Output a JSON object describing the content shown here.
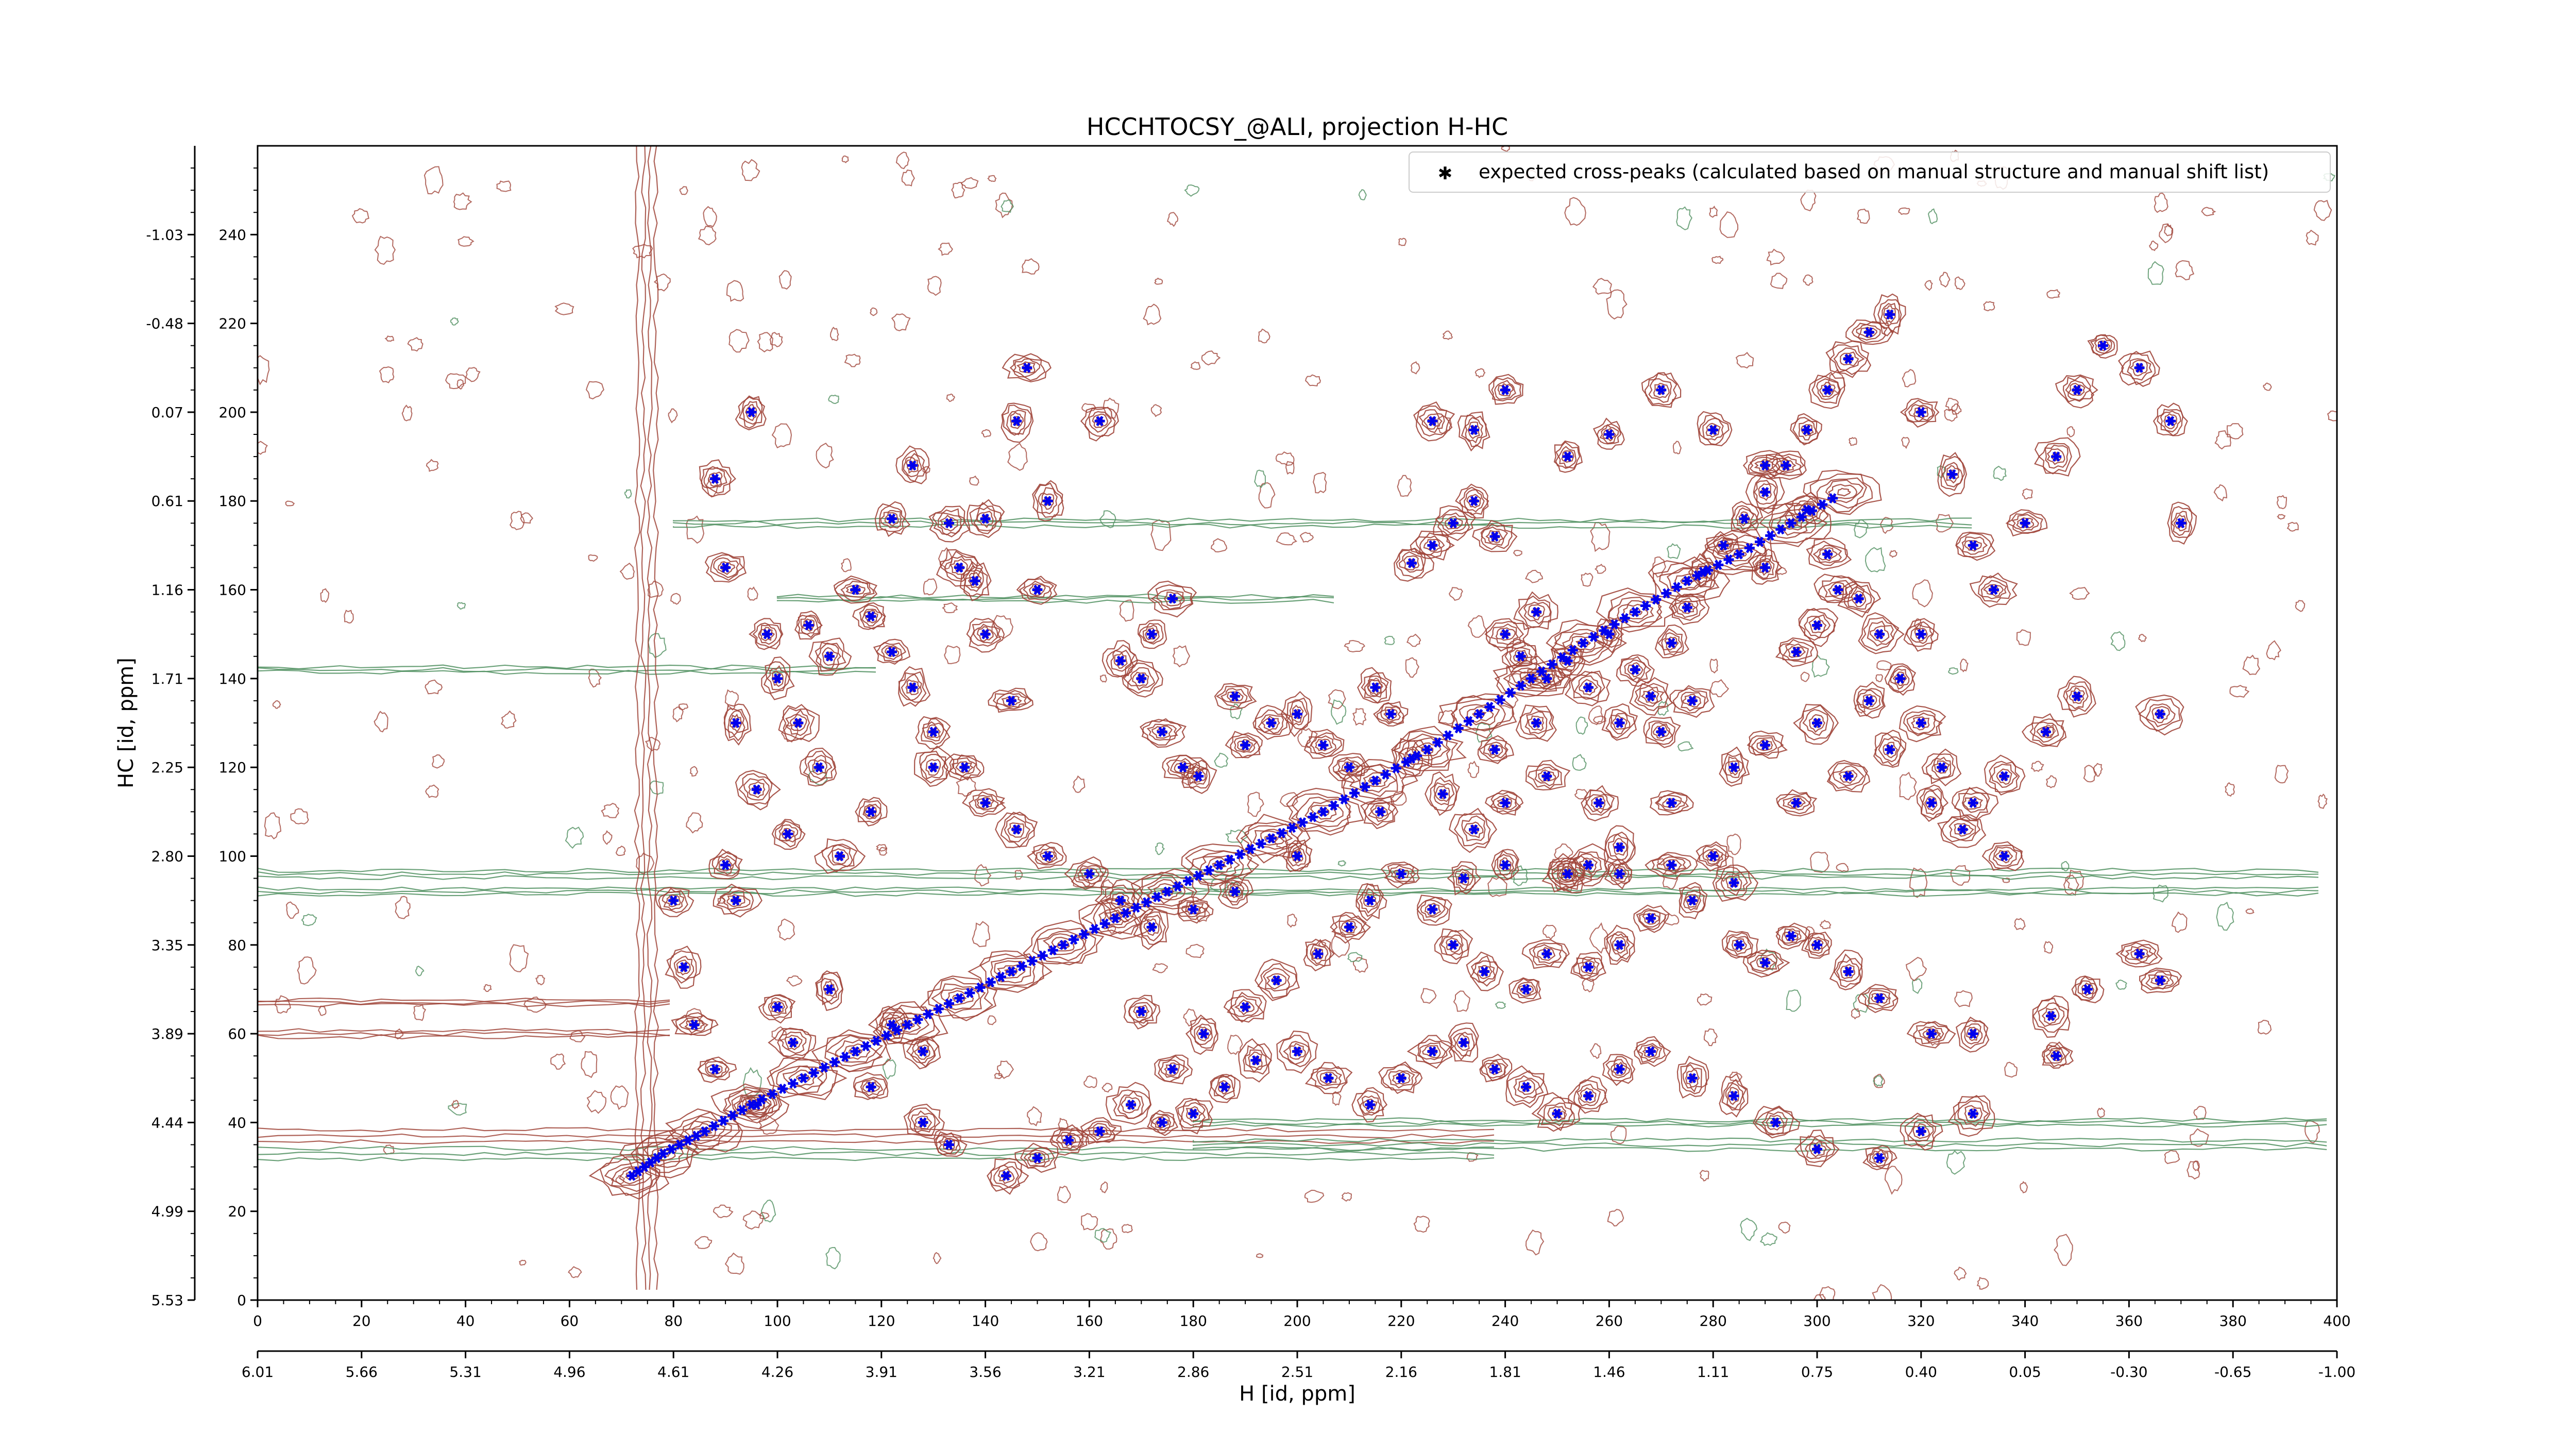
{
  "chart_data": {
    "type": "heatmap",
    "title": "HCCHTOCSY_@ALI, projection H-HC",
    "xlabel": "H [id, ppm]",
    "ylabel": "HC [id, ppm]",
    "x_index_range": [
      0,
      400
    ],
    "y_index_range": [
      0,
      260
    ],
    "x_index_ticks": [
      "0",
      "20",
      "40",
      "60",
      "80",
      "100",
      "120",
      "140",
      "160",
      "180",
      "200",
      "220",
      "240",
      "260",
      "280",
      "300",
      "320",
      "340",
      "360",
      "380",
      "400"
    ],
    "x_ppm_ticks": [
      "6.01",
      "5.66",
      "5.31",
      "4.96",
      "4.61",
      "4.26",
      "3.91",
      "3.56",
      "3.21",
      "2.86",
      "2.51",
      "2.16",
      "1.81",
      "1.46",
      "1.11",
      "0.75",
      "0.40",
      "0.05",
      "-0.30",
      "-0.65",
      "-1.00"
    ],
    "y_index_ticks": [
      "0",
      "20",
      "40",
      "60",
      "80",
      "100",
      "120",
      "140",
      "160",
      "180",
      "200",
      "220",
      "240"
    ],
    "y_ppm_ticks": [
      "5.53",
      "4.99",
      "4.44",
      "3.89",
      "3.35",
      "2.80",
      "2.25",
      "1.71",
      "1.16",
      "0.61",
      "0.07",
      "-0.48",
      "-1.03"
    ],
    "grid": false,
    "legend_position": "top-right",
    "legend_entry": "expected cross-peaks (calculated based on manual structure and manual shift list)",
    "colors": {
      "positive_contour": "#a0453a",
      "negative_contour": "#4f8f5f",
      "marker": "#0000ee"
    },
    "series": [
      {
        "name": "expected cross-peaks (calculated based on manual structure and manual shift list)",
        "diagonal": [
          [
            72,
            28
          ],
          [
            78,
            33
          ],
          [
            86,
            38
          ],
          [
            95,
            44
          ],
          [
            105,
            50
          ],
          [
            115,
            56
          ],
          [
            125,
            62
          ],
          [
            135,
            68
          ],
          [
            145,
            74
          ],
          [
            155,
            80
          ],
          [
            165,
            86
          ],
          [
            175,
            92
          ],
          [
            185,
            98
          ],
          [
            195,
            104
          ],
          [
            205,
            110
          ],
          [
            215,
            117
          ],
          [
            225,
            124
          ],
          [
            235,
            132
          ],
          [
            245,
            140
          ],
          [
            255,
            148
          ],
          [
            265,
            155
          ],
          [
            275,
            162
          ],
          [
            285,
            168
          ],
          [
            295,
            175
          ],
          [
            305,
            182
          ]
        ],
        "cross_peaks": [
          [
            88,
            185
          ],
          [
            90,
            165
          ],
          [
            95,
            200
          ],
          [
            98,
            150
          ],
          [
            100,
            140
          ],
          [
            104,
            130
          ],
          [
            108,
            120
          ],
          [
            110,
            145
          ],
          [
            112,
            100
          ],
          [
            115,
            160
          ],
          [
            118,
            110
          ],
          [
            92,
            130
          ],
          [
            96,
            115
          ],
          [
            102,
            105
          ],
          [
            106,
            152
          ],
          [
            90,
            98
          ],
          [
            92,
            90
          ],
          [
            80,
            90
          ],
          [
            82,
            75
          ],
          [
            84,
            62
          ],
          [
            88,
            52
          ],
          [
            96,
            44
          ],
          [
            100,
            66
          ],
          [
            103,
            58
          ],
          [
            110,
            70
          ],
          [
            118,
            48
          ],
          [
            122,
            62
          ],
          [
            128,
            56
          ],
          [
            128,
            40
          ],
          [
            133,
            35
          ],
          [
            135,
            165
          ],
          [
            140,
            150
          ],
          [
            145,
            135
          ],
          [
            150,
            160
          ],
          [
            148,
            210
          ],
          [
            146,
            198
          ],
          [
            162,
            198
          ],
          [
            152,
            180
          ],
          [
            133,
            175
          ],
          [
            138,
            162
          ],
          [
            166,
            144
          ],
          [
            170,
            140
          ],
          [
            172,
            150
          ],
          [
            174,
            128
          ],
          [
            176,
            158
          ],
          [
            178,
            120
          ],
          [
            181,
            118
          ],
          [
            188,
            136
          ],
          [
            190,
            125
          ],
          [
            195,
            130
          ],
          [
            200,
            132
          ],
          [
            205,
            125
          ],
          [
            210,
            120
          ],
          [
            215,
            138
          ],
          [
            218,
            132
          ],
          [
            222,
            166
          ],
          [
            226,
            170
          ],
          [
            230,
            175
          ],
          [
            234,
            180
          ],
          [
            238,
            172
          ],
          [
            240,
            150
          ],
          [
            243,
            145
          ],
          [
            246,
            155
          ],
          [
            248,
            140
          ],
          [
            252,
            144
          ],
          [
            256,
            138
          ],
          [
            260,
            150
          ],
          [
            262,
            130
          ],
          [
            265,
            142
          ],
          [
            268,
            136
          ],
          [
            272,
            148
          ],
          [
            275,
            156
          ],
          [
            278,
            164
          ],
          [
            282,
            170
          ],
          [
            286,
            176
          ],
          [
            290,
            182
          ],
          [
            294,
            188
          ],
          [
            298,
            196
          ],
          [
            302,
            205
          ],
          [
            306,
            212
          ],
          [
            310,
            218
          ],
          [
            314,
            222
          ],
          [
            320,
            200
          ],
          [
            326,
            186
          ],
          [
            330,
            170
          ],
          [
            334,
            160
          ],
          [
            340,
            175
          ],
          [
            346,
            190
          ],
          [
            350,
            205
          ],
          [
            355,
            215
          ],
          [
            362,
            210
          ],
          [
            368,
            198
          ],
          [
            370,
            175
          ],
          [
            366,
            132
          ],
          [
            226,
            198
          ],
          [
            234,
            196
          ],
          [
            240,
            205
          ],
          [
            252,
            190
          ],
          [
            260,
            195
          ],
          [
            270,
            205
          ],
          [
            280,
            196
          ],
          [
            290,
            188
          ],
          [
            298,
            178
          ],
          [
            302,
            168
          ],
          [
            308,
            158
          ],
          [
            312,
            150
          ],
          [
            316,
            140
          ],
          [
            320,
            130
          ],
          [
            324,
            120
          ],
          [
            330,
            112
          ],
          [
            336,
            118
          ],
          [
            344,
            128
          ],
          [
            350,
            136
          ],
          [
            320,
            150
          ],
          [
            310,
            135
          ],
          [
            300,
            130
          ],
          [
            290,
            125
          ],
          [
            284,
            120
          ],
          [
            272,
            112
          ],
          [
            262,
            102
          ],
          [
            252,
            96
          ],
          [
            240,
            98
          ],
          [
            232,
            95
          ],
          [
            226,
            88
          ],
          [
            230,
            80
          ],
          [
            236,
            74
          ],
          [
            244,
            70
          ],
          [
            252,
            96
          ],
          [
            256,
            98
          ],
          [
            262,
            96
          ],
          [
            272,
            98
          ],
          [
            285,
            80
          ],
          [
            290,
            76
          ],
          [
            295,
            82
          ],
          [
            300,
            80
          ],
          [
            306,
            74
          ],
          [
            312,
            68
          ],
          [
            322,
            60
          ],
          [
            330,
            60
          ],
          [
            345,
            64
          ],
          [
            352,
            70
          ],
          [
            362,
            78
          ],
          [
            366,
            72
          ],
          [
            346,
            55
          ],
          [
            330,
            42
          ],
          [
            320,
            38
          ],
          [
            312,
            32
          ],
          [
            300,
            34
          ],
          [
            292,
            40
          ],
          [
            284,
            46
          ],
          [
            276,
            50
          ],
          [
            268,
            56
          ],
          [
            262,
            52
          ],
          [
            256,
            46
          ],
          [
            250,
            42
          ],
          [
            244,
            48
          ],
          [
            238,
            52
          ],
          [
            232,
            58
          ],
          [
            226,
            56
          ],
          [
            220,
            50
          ],
          [
            214,
            44
          ],
          [
            206,
            50
          ],
          [
            200,
            56
          ],
          [
            192,
            54
          ],
          [
            186,
            48
          ],
          [
            180,
            42
          ],
          [
            174,
            40
          ],
          [
            168,
            44
          ],
          [
            162,
            38
          ],
          [
            156,
            36
          ],
          [
            150,
            32
          ],
          [
            144,
            28
          ],
          [
            176,
            52
          ],
          [
            182,
            60
          ],
          [
            170,
            65
          ],
          [
            190,
            66
          ],
          [
            196,
            72
          ],
          [
            204,
            78
          ],
          [
            210,
            84
          ],
          [
            214,
            90
          ],
          [
            220,
            96
          ],
          [
            200,
            100
          ],
          [
            188,
            92
          ],
          [
            180,
            88
          ],
          [
            172,
            84
          ],
          [
            166,
            90
          ],
          [
            160,
            96
          ],
          [
            152,
            100
          ],
          [
            146,
            106
          ],
          [
            140,
            112
          ],
          [
            136,
            120
          ],
          [
            130,
            128
          ],
          [
            126,
            138
          ],
          [
            122,
            146
          ],
          [
            118,
            154
          ],
          [
            122,
            176
          ],
          [
            126,
            188
          ],
          [
            140,
            176
          ],
          [
            130,
            120
          ],
          [
            280,
            100
          ],
          [
            284,
            94
          ],
          [
            276,
            90
          ],
          [
            268,
            86
          ],
          [
            262,
            80
          ],
          [
            256,
            75
          ],
          [
            248,
            78
          ],
          [
            296,
            146
          ],
          [
            300,
            152
          ],
          [
            304,
            160
          ],
          [
            290,
            165
          ],
          [
            296,
            112
          ],
          [
            306,
            118
          ],
          [
            314,
            124
          ],
          [
            322,
            112
          ],
          [
            328,
            106
          ],
          [
            336,
            100
          ],
          [
            276,
            135
          ],
          [
            270,
            128
          ],
          [
            246,
            130
          ],
          [
            238,
            124
          ],
          [
            248,
            118
          ],
          [
            258,
            112
          ],
          [
            240,
            112
          ],
          [
            234,
            106
          ],
          [
            228,
            114
          ],
          [
            222,
            122
          ],
          [
            216,
            110
          ]
        ]
      }
    ]
  }
}
